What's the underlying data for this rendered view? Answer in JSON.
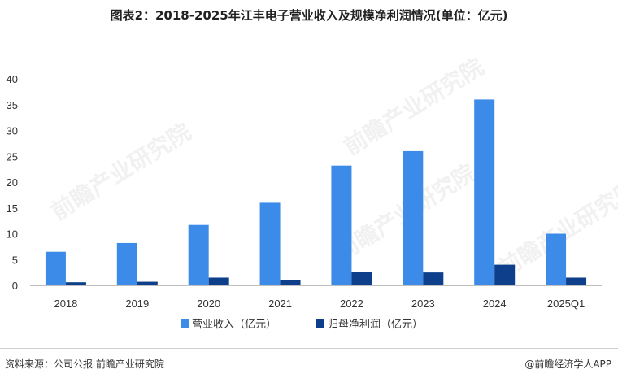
{
  "title": "图表2：2018-2025年江丰电子营业收入及规模净利润情况(单位：亿元)",
  "footer": {
    "source": "资料来源：公司公报 前瞻产业研究院",
    "brand": "@前瞻经济学人APP"
  },
  "watermark": "前瞻产业研究院",
  "colors": {
    "revenue": "#3D8BE8",
    "net_profit": "#0E3F8A",
    "axis": "#bfbfbf"
  },
  "chart_data": {
    "type": "bar",
    "title": "图表2：2018-2025年江丰电子营业收入及规模净利润情况(单位：亿元)",
    "categories": [
      "2018",
      "2019",
      "2020",
      "2021",
      "2022",
      "2023",
      "2024",
      "2025Q1"
    ],
    "series": [
      {
        "name": "营业收入（亿元）",
        "values": [
          6.5,
          8.2,
          11.7,
          16.0,
          23.2,
          26.0,
          36.0,
          10.0
        ]
      },
      {
        "name": "归母净利润（亿元）",
        "values": [
          0.6,
          0.7,
          1.5,
          1.1,
          2.6,
          2.5,
          4.0,
          1.5
        ]
      }
    ],
    "yticks": [
      0,
      5,
      10,
      15,
      20,
      25,
      30,
      35,
      40
    ],
    "ylim": [
      0,
      40
    ],
    "grid": false,
    "legend": "bottom-center"
  }
}
